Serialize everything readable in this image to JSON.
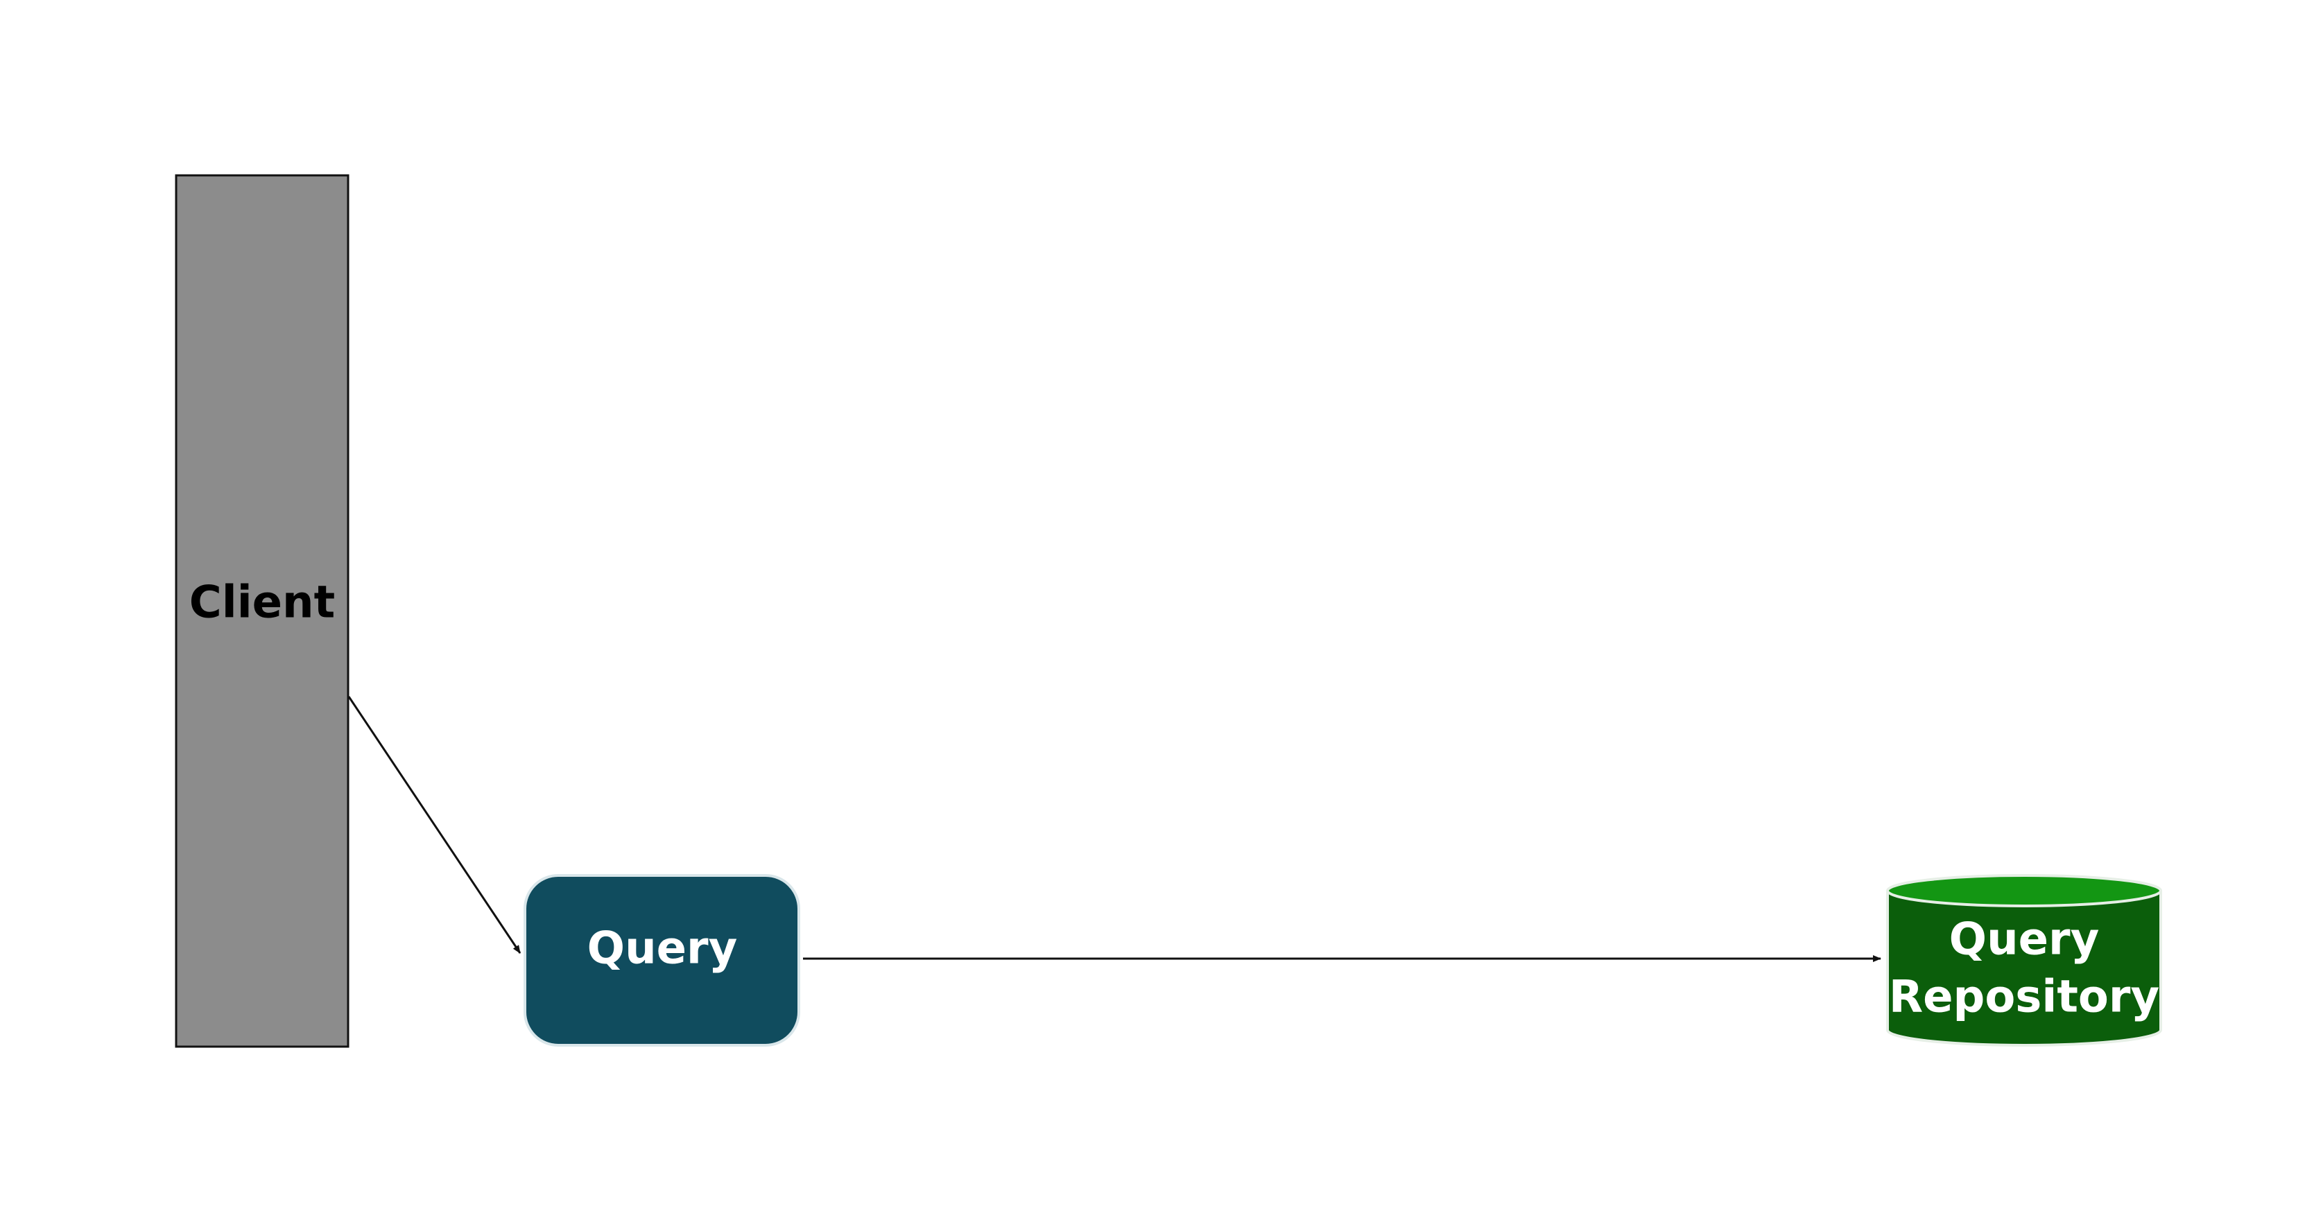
{
  "diagram": {
    "nodes": {
      "client": {
        "label": "Client",
        "fill": "#8c8c8c",
        "stroke": "#111111",
        "text_color": "#000000"
      },
      "query": {
        "label": "Query",
        "fill": "#104c5e",
        "stroke": "#d9e6ea",
        "text_color": "#ffffff"
      },
      "repository": {
        "label_line1": "Query",
        "label_line2": "Repository",
        "fill": "#0b5e0b",
        "top_fill": "#139613",
        "stroke": "#e6efe6",
        "text_color": "#ffffff"
      }
    },
    "edges": [
      {
        "from": "Client",
        "to": "Query"
      },
      {
        "from": "Query",
        "to": "Query Repository"
      }
    ],
    "edge_color": "#111111"
  }
}
